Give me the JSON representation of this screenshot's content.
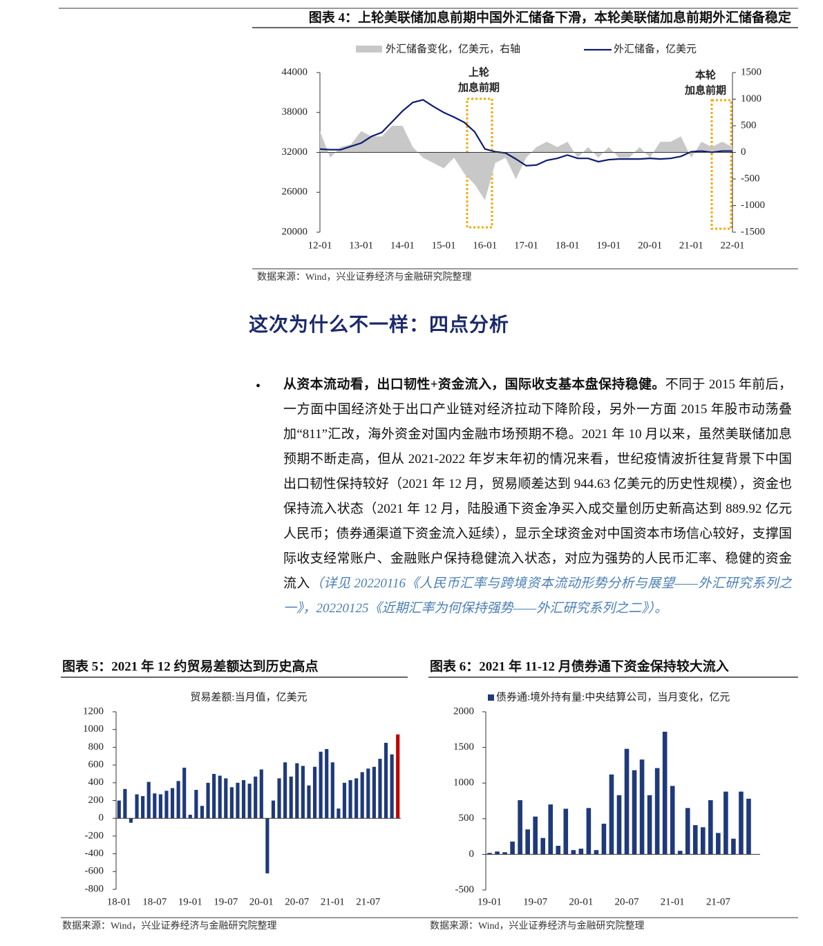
{
  "heading": "这次为什么不一样：四点分析",
  "paragraph": {
    "lead": "从资本流动看，出口韧性+资金流入，国际收支基本盘保持稳健。",
    "body": "不同于 2015 年前后，一方面中国经济处于出口产业链对经济拉动下降阶段，另外一方面 2015 年股市动荡叠加“811”汇改，海外资金对国内金融市场预期不稳。2021 年 10 月以来，虽然美联储加息预期不断走高，但从 2021-2022 年岁末年初的情况来看，世纪疫情波折往复背景下中国出口韧性保持较好（2021 年 12 月，贸易顺差达到 944.63 亿美元的历史性规模），资金也保持流入状态（2021 年 12 月，陆股通下资金净买入成交量创历史新高达到 889.92 亿元人民币；债券通渠道下资金流入延续），显示全球资金对中国资本市场信心较好，支撑国际收支经常账户、金融账户保持稳健流入状态，对应为强势的人民币汇率、稳健的资金流入",
    "reference": "（详见 20220116《人民币汇率与跨境资本流动形势分析与展望——外汇研究系列之一》，20220125《近期汇率为何保持强势——外汇研究系列之二》）。"
  },
  "chart_data": [
    {
      "type": "line",
      "title": "图表 4：上轮美联储加息前期中国外汇储备下滑，本轮美联储加息前期外汇储备稳定",
      "source": "数据来源：Wind，兴业证券经济与金融研究院整理",
      "categories": [
        "12-01",
        null,
        null,
        null,
        "13-01",
        null,
        null,
        null,
        "14-01",
        null,
        null,
        null,
        "15-01",
        null,
        null,
        null,
        "16-01",
        null,
        null,
        null,
        "17-01",
        null,
        null,
        null,
        "18-01",
        null,
        null,
        null,
        "19-01",
        null,
        null,
        null,
        "20-01",
        null,
        null,
        null,
        "21-01",
        null,
        null,
        null,
        "22-01"
      ],
      "series": [
        {
          "name": "外汇储备变化，亿美元，右轴",
          "type": "area",
          "axis": "y2",
          "color": "#c8c8c8",
          "values": [
            400,
            -100,
            100,
            150,
            400,
            300,
            300,
            500,
            500,
            100,
            -100,
            -200,
            -300,
            -100,
            -400,
            -600,
            -900,
            -200,
            -100,
            -500,
            -100,
            100,
            200,
            100,
            200,
            -100,
            100,
            -100,
            100,
            -100,
            -100,
            100,
            -100,
            200,
            200,
            300,
            -100,
            200,
            100,
            200,
            100
          ]
        },
        {
          "name": "外汇储备，亿美元",
          "type": "line",
          "color": "#0d1b6e",
          "values": [
            32500,
            32400,
            32400,
            32900,
            33400,
            34400,
            35000,
            36600,
            38200,
            39500,
            39900,
            38900,
            38000,
            37300,
            36500,
            35100,
            32500,
            32100,
            31900,
            31000,
            30000,
            30100,
            30800,
            31100,
            31600,
            31100,
            31100,
            30600,
            30900,
            31000,
            31000,
            31000,
            31100,
            31000,
            31100,
            31400,
            32100,
            32200,
            32000,
            32200,
            32200
          ]
        }
      ],
      "ylim": [
        20000,
        44000
      ],
      "yticks": [
        20000,
        26000,
        32000,
        38000,
        44000
      ],
      "y2lim": [
        -1500,
        1500
      ],
      "y2ticks": [
        -1500,
        -1000,
        -500,
        0,
        500,
        1000,
        1500
      ],
      "annotations": [
        [
          "上轮",
          "加息前期"
        ],
        [
          "本轮",
          "加息前期"
        ]
      ]
    },
    {
      "type": "bar",
      "title": "图表 5：2021 年 12 约贸易差额达到历史高点",
      "source": "数据来源：Wind，兴业证券经济与金融研究院整理",
      "categories": [
        "18-01",
        null,
        null,
        null,
        null,
        null,
        "18-07",
        null,
        null,
        null,
        null,
        null,
        "19-01",
        null,
        null,
        null,
        null,
        null,
        "19-07",
        null,
        null,
        null,
        null,
        null,
        "20-01",
        null,
        null,
        null,
        null,
        null,
        "20-07",
        null,
        null,
        null,
        null,
        null,
        "21-01",
        null,
        null,
        null,
        null,
        null,
        "21-07",
        null,
        null,
        null,
        null,
        null
      ],
      "series": [
        {
          "name": "贸易差额:当月值，亿美元",
          "values": [
            200,
            330,
            -50,
            270,
            250,
            410,
            280,
            270,
            310,
            340,
            420,
            570,
            40,
            320,
            140,
            400,
            500,
            480,
            450,
            350,
            400,
            430,
            390,
            470,
            550,
            -620,
            200,
            450,
            630,
            470,
            620,
            590,
            370,
            580,
            750,
            780,
            630,
            110,
            400,
            430,
            450,
            520,
            560,
            580,
            670,
            850,
            720,
            944.63
          ],
          "colors": [
            "#1f3a7a",
            "#1f3a7a",
            "#1f3a7a",
            "#1f3a7a",
            "#1f3a7a",
            "#1f3a7a",
            "#1f3a7a",
            "#1f3a7a",
            "#1f3a7a",
            "#1f3a7a",
            "#1f3a7a",
            "#1f3a7a",
            "#1f3a7a",
            "#1f3a7a",
            "#1f3a7a",
            "#1f3a7a",
            "#1f3a7a",
            "#1f3a7a",
            "#1f3a7a",
            "#1f3a7a",
            "#1f3a7a",
            "#1f3a7a",
            "#1f3a7a",
            "#1f3a7a",
            "#1f3a7a",
            "#1f3a7a",
            "#1f3a7a",
            "#1f3a7a",
            "#1f3a7a",
            "#1f3a7a",
            "#1f3a7a",
            "#1f3a7a",
            "#1f3a7a",
            "#1f3a7a",
            "#1f3a7a",
            "#1f3a7a",
            "#1f3a7a",
            "#1f3a7a",
            "#1f3a7a",
            "#1f3a7a",
            "#1f3a7a",
            "#1f3a7a",
            "#1f3a7a",
            "#1f3a7a",
            "#1f3a7a",
            "#1f3a7a",
            "#1f3a7a",
            "#c00000"
          ]
        }
      ],
      "ylim": [
        -800,
        1200
      ],
      "yticks": [
        -800,
        -600,
        -400,
        -200,
        0,
        200,
        400,
        600,
        800,
        1000,
        1200
      ]
    },
    {
      "type": "bar",
      "title": "图表 6：2021 年 11-12 月债券通下资金保持较大流入",
      "source": "数据来源：Wind，兴业证券经济与金融研究院整理",
      "categories": [
        "19-01",
        null,
        null,
        null,
        null,
        null,
        "19-07",
        null,
        null,
        null,
        null,
        null,
        "20-01",
        null,
        null,
        null,
        null,
        null,
        "20-07",
        null,
        null,
        null,
        null,
        null,
        "21-01",
        null,
        null,
        null,
        null,
        null,
        "21-07",
        null,
        null,
        null,
        null,
        null
      ],
      "series": [
        {
          "name": "债券通:境外持有量:中央结算公司，当月变化，亿元",
          "color": "#1f3a7a",
          "values": [
            20,
            40,
            30,
            180,
            760,
            350,
            530,
            230,
            700,
            120,
            640,
            60,
            80,
            650,
            60,
            430,
            1120,
            830,
            1480,
            1180,
            1330,
            830,
            1210,
            1720,
            960,
            50,
            650,
            410,
            380,
            760,
            300,
            880,
            220,
            880,
            780,
            0
          ]
        }
      ],
      "ylim": [
        -500,
        2000
      ],
      "yticks": [
        -500,
        0,
        500,
        1000,
        1500,
        2000
      ]
    }
  ]
}
